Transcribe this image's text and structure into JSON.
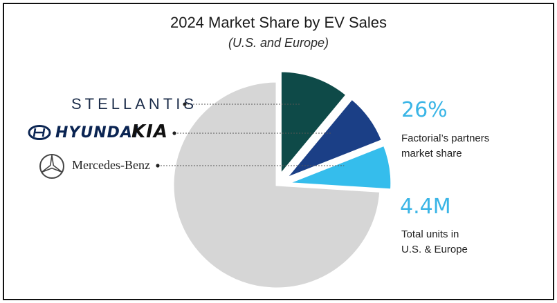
{
  "chart_data": {
    "type": "pie",
    "title": "2024 Market Share by EV Sales",
    "subtitle": "(U.S. and Europe)",
    "slices": [
      {
        "value": 11,
        "color": "#0e4a48",
        "exploded": true
      },
      {
        "value": 8,
        "color": "#1b3f86",
        "exploded": true
      },
      {
        "value": 7,
        "color": "#35bdec",
        "exploded": true
      },
      {
        "value": 74,
        "color": "#d6d6d6",
        "exploded": false
      }
    ],
    "legend": [
      {
        "brand": "STELLANTIS"
      },
      {
        "brands": [
          "HYUNDAI",
          "KIA"
        ]
      },
      {
        "brand": "Mercedes-Benz"
      }
    ]
  },
  "callouts": {
    "partners_share": {
      "value": "26%",
      "lines": [
        "Factorial’s partners",
        "market share"
      ]
    },
    "total_units": {
      "value": "4.4M",
      "lines": [
        "Total units in",
        "U.S. & Europe"
      ]
    }
  },
  "colors": {
    "accent": "#3ab5e6",
    "border": "#111111",
    "text": "#1a1a1a"
  }
}
